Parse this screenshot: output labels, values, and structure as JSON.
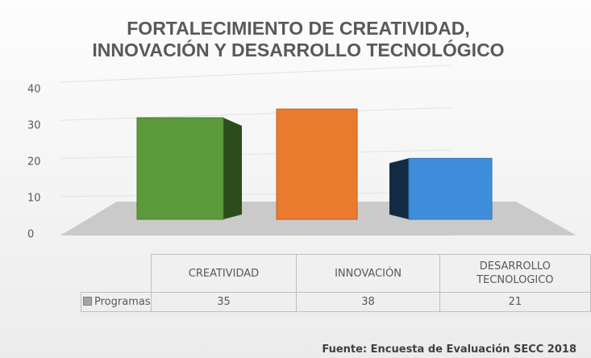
{
  "chart_data": {
    "type": "bar3d",
    "title": "FORTALECIMIENTO DE CREATIVIDAD, INNOVACIÓN Y DESARROLLO TECNOLÓGICO",
    "categories": [
      "CREATIVIDAD",
      "INNOVACIÓN",
      "DESARROLLO TECNOLOGICO"
    ],
    "series": [
      {
        "name": "Programas",
        "values": [
          35,
          38,
          21
        ]
      }
    ],
    "colors": [
      "#5b9a3a",
      "#ea7a2e",
      "#3f8edb"
    ],
    "ylim": [
      0,
      40
    ],
    "yticks": [
      0,
      10,
      20,
      30,
      40
    ],
    "grid": true,
    "source": "Fuente: Encuesta de Evaluación SECC 2018"
  }
}
